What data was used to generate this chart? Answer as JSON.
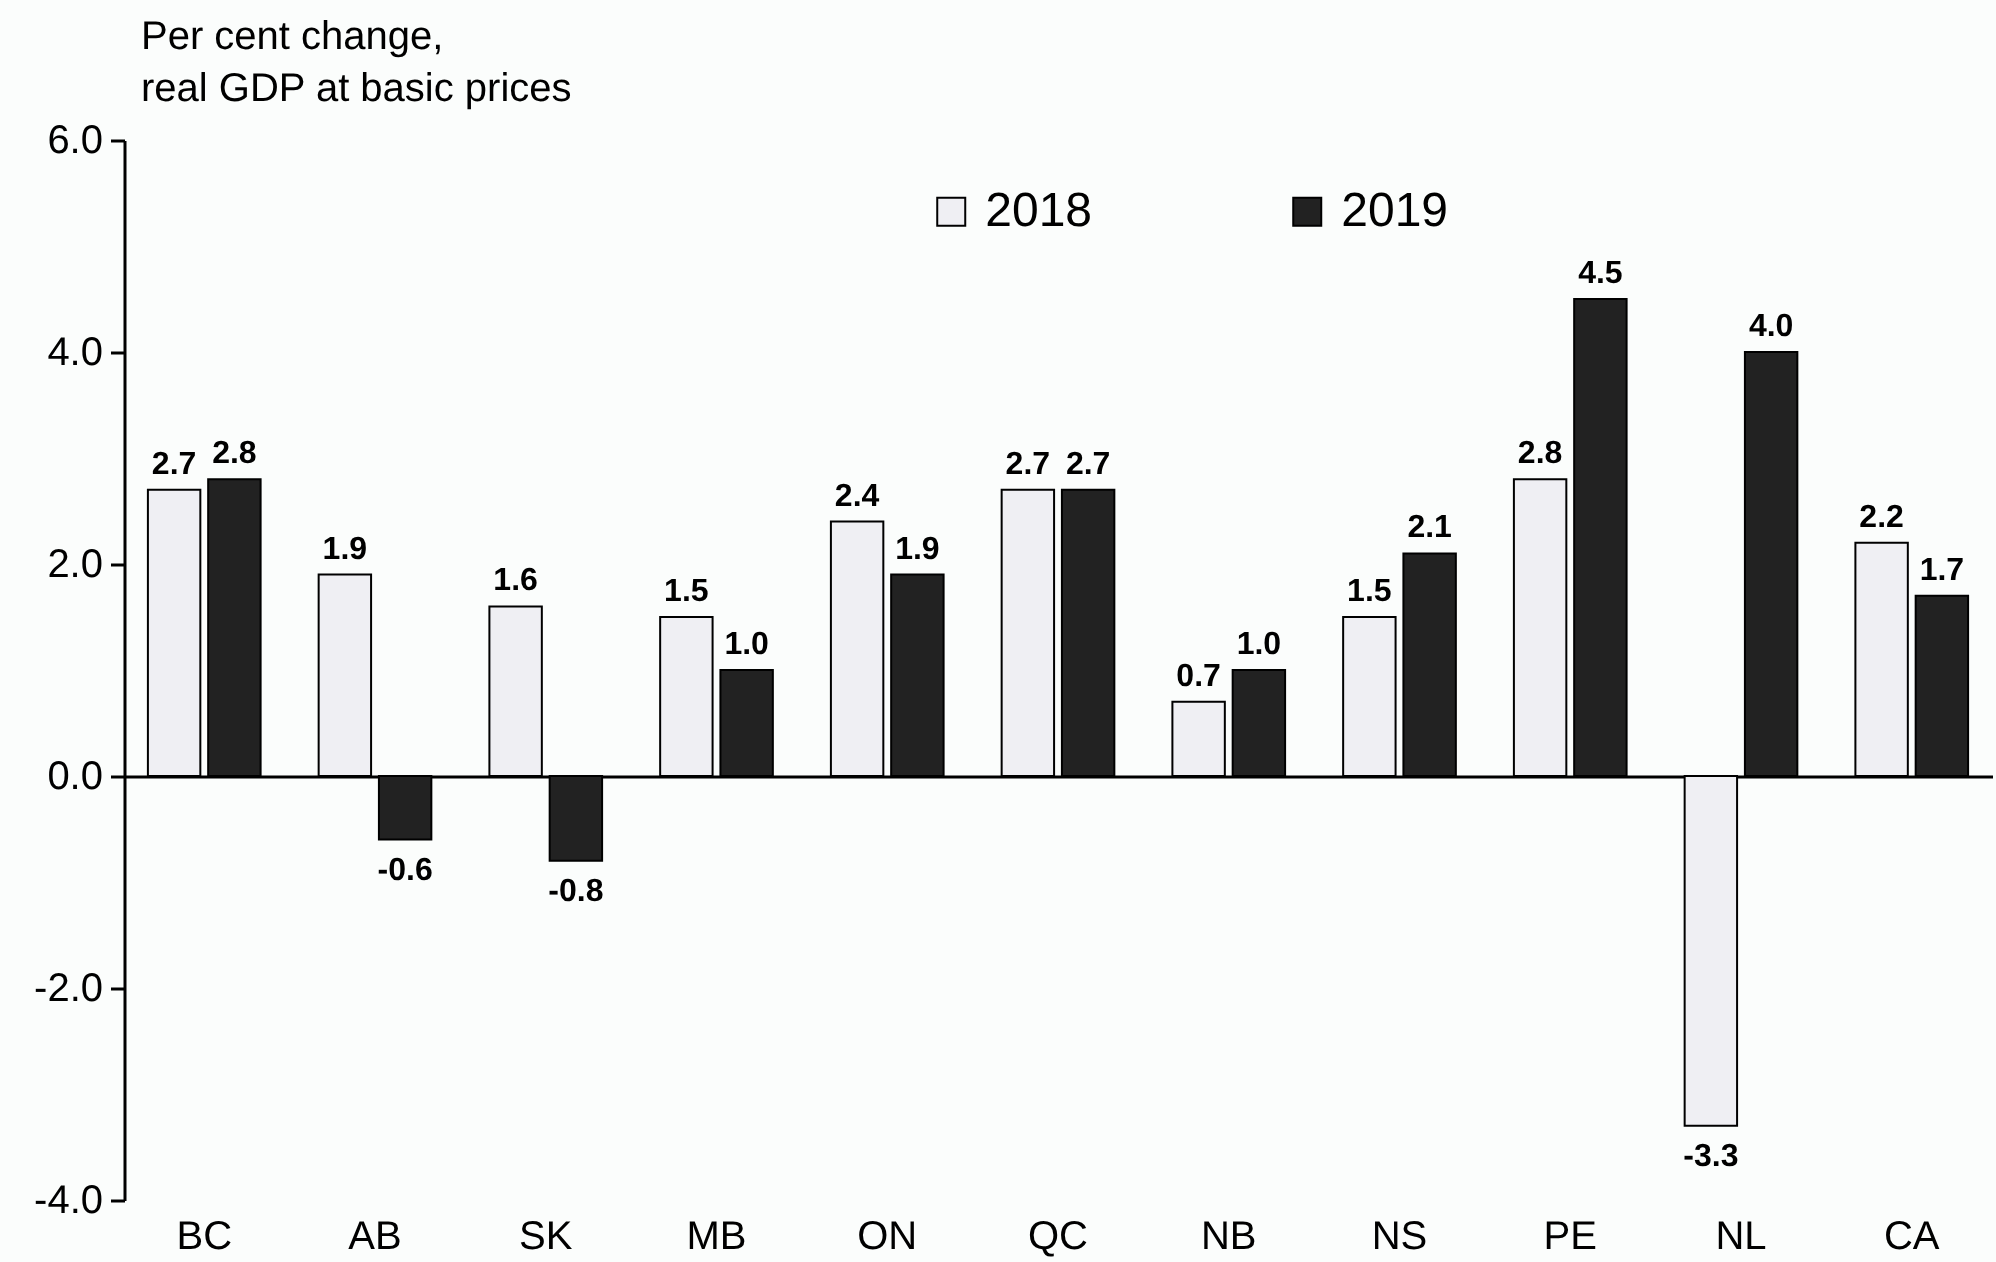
{
  "chart_data": {
    "type": "bar",
    "ylabel": "Per cent change,\nreal GDP at basic prices",
    "categories": [
      "BC",
      "AB",
      "SK",
      "MB",
      "ON",
      "QC",
      "NB",
      "NS",
      "PE",
      "NL",
      "CA"
    ],
    "series": [
      {
        "name": "2018",
        "color": "#efeff3",
        "values": [
          2.7,
          1.9,
          1.6,
          1.5,
          2.4,
          2.7,
          0.7,
          1.5,
          2.8,
          -3.3,
          2.2
        ],
        "value_labels": [
          "2.7",
          "1.9",
          "1.6",
          "1.5",
          "2.4",
          "2.7",
          "0.7",
          "1.5",
          "2.8",
          "-3.3",
          "2.2"
        ]
      },
      {
        "name": "2019",
        "color": "#222222",
        "values": [
          2.8,
          -0.6,
          -0.8,
          1.0,
          1.9,
          2.7,
          1.0,
          2.1,
          4.5,
          4.0,
          1.7
        ],
        "value_labels": [
          "2.8",
          "-0.6",
          "-0.8",
          "1.0",
          "1.9",
          "2.7",
          "1.0",
          "2.1",
          "4.5",
          "4.0",
          "1.7"
        ]
      }
    ],
    "ylim": [
      -4,
      6
    ],
    "yticks": [
      {
        "value": -4,
        "label": "-4.0"
      },
      {
        "value": -2,
        "label": "-2.0"
      },
      {
        "value": 0,
        "label": "0.0"
      },
      {
        "value": 2,
        "label": "2.0"
      },
      {
        "value": 4,
        "label": "4.0"
      },
      {
        "value": 6,
        "label": "6.0"
      }
    ],
    "legend": "top"
  }
}
